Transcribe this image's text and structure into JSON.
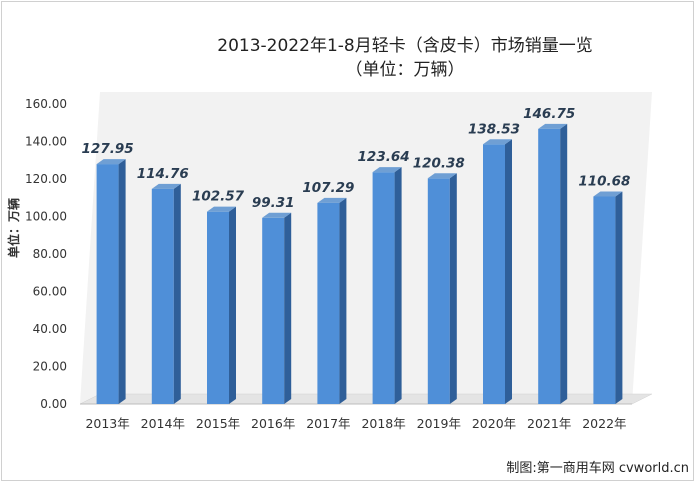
{
  "chart_data": {
    "type": "bar",
    "title": "2013-2022年1-8月轻卡（含皮卡）市场销量一览",
    "subtitle": "（单位：万辆）",
    "ylabel": "单位：万辆",
    "xlabel": "",
    "categories": [
      "2013年",
      "2014年",
      "2015年",
      "2016年",
      "2017年",
      "2018年",
      "2019年",
      "2020年",
      "2021年",
      "2022年"
    ],
    "values": [
      127.95,
      114.76,
      102.57,
      99.31,
      107.29,
      123.64,
      120.38,
      138.53,
      146.75,
      110.68
    ],
    "value_labels": [
      "127.95",
      "114.76",
      "102.57",
      "99.31",
      "107.29",
      "123.64",
      "120.38",
      "138.53",
      "146.75",
      "110.68"
    ],
    "ylim": [
      0,
      160
    ],
    "yticks": [
      "0.00",
      "20.00",
      "40.00",
      "60.00",
      "80.00",
      "100.00",
      "120.00",
      "140.00",
      "160.00"
    ],
    "grid": false,
    "legend": "none",
    "bar_color": "#4f8fd8",
    "bar_side_color": "#2f5f99",
    "bar_top_color": "#6f9fd4"
  },
  "credit": "制图:第一商用车网 cvworld.cn"
}
